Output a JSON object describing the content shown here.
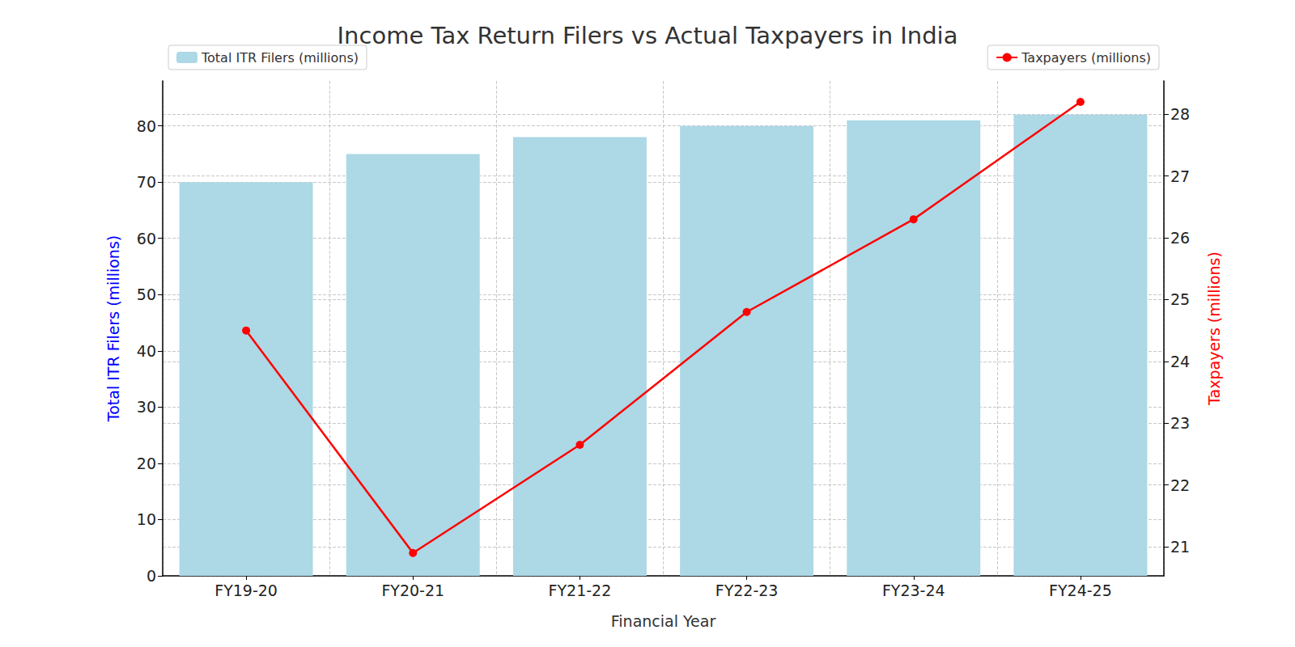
{
  "chart_data": {
    "type": "bar",
    "title": "Income Tax Return Filers vs Actual Taxpayers in India",
    "x_label": "Financial Year",
    "y_label": "Total ITR Filers (millions)",
    "y2_label": "Taxpayers (millions)",
    "categories": [
      "FY19-20",
      "FY20-21",
      "FY21-22",
      "FY22-23",
      "FY23-24",
      "FY24-25"
    ],
    "series": [
      {
        "name": "Total ITR Filers (millions)",
        "type": "bar",
        "color": "#add8e6",
        "values": [
          70,
          75,
          78,
          80,
          81,
          82
        ]
      },
      {
        "name": "Taxpayers (millions)",
        "type": "line",
        "axis": "y2",
        "color": "#ff0000",
        "marker": "circle",
        "line_style": "solid",
        "values": [
          24.5,
          20.9,
          22.65,
          24.8,
          26.3,
          28.2
        ]
      }
    ],
    "ylim": [
      0,
      88
    ],
    "yticks": [
      0,
      10,
      20,
      30,
      40,
      50,
      60,
      70,
      80
    ],
    "y2lim": [
      20.53,
      28.54
    ],
    "y2ticks": [
      21,
      22,
      23,
      24,
      25,
      26,
      27,
      28
    ],
    "grid": true,
    "legend": "top"
  }
}
